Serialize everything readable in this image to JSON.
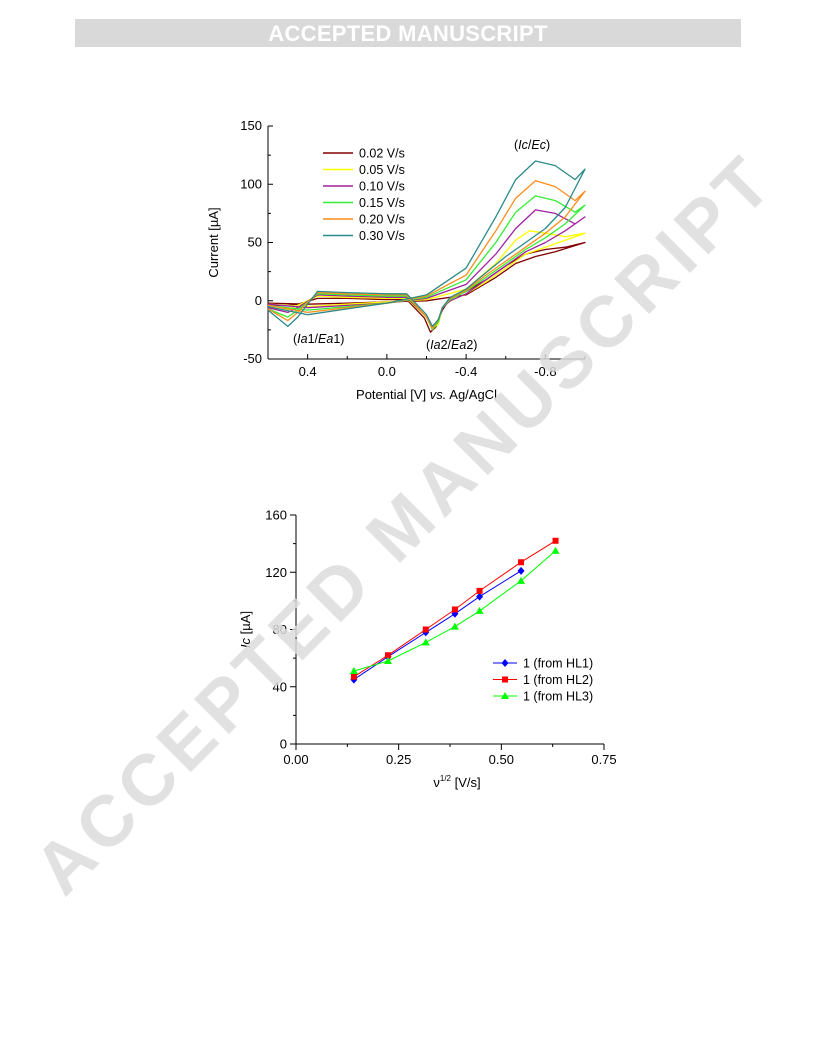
{
  "banner": "ACCEPTED MANUSCRIPT",
  "watermark": "ACCEPTED MANUSCRIPT",
  "chart_data": [
    {
      "type": "line",
      "xlabel": "Potential [V] vs. Ag/AgCl",
      "xlabel_parts": [
        "Potential [V] ",
        "vs.",
        " Ag/AgCl"
      ],
      "ylabel": "Current [µA]",
      "xlim": [
        0.6,
        -1.0
      ],
      "ylim": [
        -50,
        150
      ],
      "xticks": [
        0.4,
        0.0,
        -0.4,
        -0.8
      ],
      "xtick_labels": [
        "0.4",
        "0.0",
        "-0.4",
        "-0.8"
      ],
      "yticks": [
        -50,
        0,
        50,
        100,
        150
      ],
      "ytick_labels": [
        "-50",
        "0",
        "50",
        "100",
        "150"
      ],
      "x_reversed": true,
      "annotations": [
        {
          "text": "(Ic/Ec)",
          "parts": [
            "(",
            "Ic",
            "/",
            "Ec",
            ")"
          ]
        },
        {
          "text": "(Ia1/Ea1)",
          "parts": [
            "(",
            "Ia",
            "1/",
            "Ea",
            "1)"
          ]
        },
        {
          "text": "(Ia2/Ea2)",
          "parts": [
            "(",
            "Ia",
            "2/",
            "Ea",
            "2)"
          ]
        }
      ],
      "legend_position": "top-left",
      "series": [
        {
          "name": "0.02 V/s",
          "color": "#800000",
          "forward": [
            [
              0.6,
              -2
            ],
            [
              0.4,
              -3
            ],
            [
              0.2,
              -2
            ],
            [
              0.0,
              -1
            ],
            [
              -0.2,
              0
            ],
            [
              -0.4,
              5
            ],
            [
              -0.55,
              20
            ],
            [
              -0.65,
              32
            ],
            [
              -0.75,
              38
            ],
            [
              -0.85,
              42
            ],
            [
              -1.0,
              50
            ]
          ],
          "reverse": [
            [
              -1.0,
              50
            ],
            [
              -0.9,
              46
            ],
            [
              -0.8,
              44
            ],
            [
              -0.7,
              40
            ],
            [
              -0.6,
              30
            ],
            [
              -0.5,
              18
            ],
            [
              -0.4,
              8
            ],
            [
              -0.32,
              2
            ],
            [
              -0.28,
              -8
            ],
            [
              -0.25,
              -22
            ],
            [
              -0.22,
              -27
            ],
            [
              -0.19,
              -15
            ],
            [
              -0.1,
              1
            ],
            [
              0.0,
              1
            ],
            [
              0.2,
              2
            ],
            [
              0.35,
              2
            ],
            [
              0.45,
              -3
            ],
            [
              0.5,
              -4
            ],
            [
              0.6,
              -4
            ]
          ]
        },
        {
          "name": "0.05 V/s",
          "color": "#ffff00",
          "forward": [
            [
              0.6,
              -3
            ],
            [
              0.4,
              -5
            ],
            [
              0.2,
              -3
            ],
            [
              0.0,
              -1
            ],
            [
              -0.2,
              1
            ],
            [
              -0.4,
              10
            ],
            [
              -0.55,
              32
            ],
            [
              -0.65,
              52
            ],
            [
              -0.72,
              60
            ],
            [
              -0.8,
              58
            ],
            [
              -0.9,
              55
            ],
            [
              -1.0,
              58
            ]
          ],
          "reverse": [
            [
              -1.0,
              58
            ],
            [
              -0.9,
              52
            ],
            [
              -0.8,
              46
            ],
            [
              -0.7,
              40
            ],
            [
              -0.6,
              28
            ],
            [
              -0.5,
              16
            ],
            [
              -0.4,
              6
            ],
            [
              -0.32,
              0
            ],
            [
              -0.28,
              -6
            ],
            [
              -0.26,
              -20
            ],
            [
              -0.23,
              -24
            ],
            [
              -0.2,
              -14
            ],
            [
              -0.1,
              2
            ],
            [
              0.0,
              2
            ],
            [
              0.2,
              3
            ],
            [
              0.35,
              4
            ],
            [
              0.45,
              -4
            ],
            [
              0.5,
              -8
            ],
            [
              0.6,
              -6
            ]
          ]
        },
        {
          "name": "0.10 V/s",
          "color": "#a020a0",
          "forward": [
            [
              0.6,
              -3
            ],
            [
              0.4,
              -6
            ],
            [
              0.2,
              -4
            ],
            [
              0.0,
              -2
            ],
            [
              -0.2,
              2
            ],
            [
              -0.4,
              14
            ],
            [
              -0.55,
              40
            ],
            [
              -0.65,
              62
            ],
            [
              -0.75,
              78
            ],
            [
              -0.85,
              75
            ],
            [
              -0.95,
              66
            ],
            [
              -1.0,
              72
            ]
          ],
          "reverse": [
            [
              -1.0,
              72
            ],
            [
              -0.9,
              60
            ],
            [
              -0.8,
              50
            ],
            [
              -0.7,
              42
            ],
            [
              -0.6,
              30
            ],
            [
              -0.5,
              18
            ],
            [
              -0.4,
              6
            ],
            [
              -0.32,
              0
            ],
            [
              -0.28,
              -6
            ],
            [
              -0.26,
              -18
            ],
            [
              -0.23,
              -24
            ],
            [
              -0.2,
              -14
            ],
            [
              -0.1,
              3
            ],
            [
              0.0,
              3
            ],
            [
              0.2,
              4
            ],
            [
              0.35,
              5
            ],
            [
              0.45,
              -6
            ],
            [
              0.5,
              -10
            ],
            [
              0.6,
              -6
            ]
          ]
        },
        {
          "name": "0.15 V/s",
          "color": "#33ee33",
          "forward": [
            [
              0.6,
              -4
            ],
            [
              0.4,
              -8
            ],
            [
              0.2,
              -5
            ],
            [
              0.0,
              -2
            ],
            [
              -0.2,
              3
            ],
            [
              -0.4,
              18
            ],
            [
              -0.55,
              50
            ],
            [
              -0.65,
              76
            ],
            [
              -0.75,
              90
            ],
            [
              -0.85,
              86
            ],
            [
              -0.95,
              76
            ],
            [
              -1.0,
              82
            ]
          ],
          "reverse": [
            [
              -1.0,
              82
            ],
            [
              -0.9,
              66
            ],
            [
              -0.8,
              54
            ],
            [
              -0.7,
              44
            ],
            [
              -0.6,
              32
            ],
            [
              -0.5,
              20
            ],
            [
              -0.4,
              8
            ],
            [
              -0.32,
              1
            ],
            [
              -0.28,
              -6
            ],
            [
              -0.26,
              -18
            ],
            [
              -0.23,
              -25
            ],
            [
              -0.2,
              -14
            ],
            [
              -0.1,
              4
            ],
            [
              0.0,
              4
            ],
            [
              0.2,
              5
            ],
            [
              0.35,
              6
            ],
            [
              0.45,
              -8
            ],
            [
              0.5,
              -14
            ],
            [
              0.6,
              -7
            ]
          ]
        },
        {
          "name": "0.20 V/s",
          "color": "#ff8c1a",
          "forward": [
            [
              0.6,
              -4
            ],
            [
              0.4,
              -10
            ],
            [
              0.2,
              -6
            ],
            [
              0.0,
              -2
            ],
            [
              -0.2,
              4
            ],
            [
              -0.4,
              22
            ],
            [
              -0.55,
              60
            ],
            [
              -0.65,
              88
            ],
            [
              -0.75,
              103
            ],
            [
              -0.85,
              98
            ],
            [
              -0.95,
              86
            ],
            [
              -1.0,
              94
            ]
          ],
          "reverse": [
            [
              -1.0,
              94
            ],
            [
              -0.9,
              72
            ],
            [
              -0.8,
              58
            ],
            [
              -0.7,
              46
            ],
            [
              -0.6,
              34
            ],
            [
              -0.5,
              22
            ],
            [
              -0.4,
              9
            ],
            [
              -0.32,
              2
            ],
            [
              -0.28,
              -6
            ],
            [
              -0.26,
              -16
            ],
            [
              -0.23,
              -24
            ],
            [
              -0.2,
              -14
            ],
            [
              -0.1,
              5
            ],
            [
              0.0,
              5
            ],
            [
              0.2,
              6
            ],
            [
              0.35,
              7
            ],
            [
              0.45,
              -10
            ],
            [
              0.5,
              -17
            ],
            [
              0.6,
              -7
            ]
          ]
        },
        {
          "name": "0.30 V/s",
          "color": "#2a8a8a",
          "forward": [
            [
              0.6,
              -5
            ],
            [
              0.4,
              -12
            ],
            [
              0.2,
              -7
            ],
            [
              0.0,
              -2
            ],
            [
              -0.2,
              5
            ],
            [
              -0.4,
              28
            ],
            [
              -0.55,
              72
            ],
            [
              -0.65,
              104
            ],
            [
              -0.75,
              120
            ],
            [
              -0.85,
              116
            ],
            [
              -0.95,
              104
            ],
            [
              -1.0,
              113
            ]
          ],
          "reverse": [
            [
              -1.0,
              113
            ],
            [
              -0.9,
              80
            ],
            [
              -0.8,
              62
            ],
            [
              -0.7,
              50
            ],
            [
              -0.6,
              38
            ],
            [
              -0.5,
              24
            ],
            [
              -0.4,
              10
            ],
            [
              -0.32,
              3
            ],
            [
              -0.28,
              -6
            ],
            [
              -0.26,
              -16
            ],
            [
              -0.23,
              -22
            ],
            [
              -0.2,
              -12
            ],
            [
              -0.1,
              6
            ],
            [
              0.0,
              6
            ],
            [
              0.2,
              7
            ],
            [
              0.35,
              8
            ],
            [
              0.45,
              -14
            ],
            [
              0.5,
              -22
            ],
            [
              0.6,
              -8
            ]
          ]
        }
      ]
    },
    {
      "type": "line",
      "xlabel": "ν",
      "xlabel_sup": "1/2",
      "xlabel_unit": " [V/s]",
      "ylabel": "Ic [µA]",
      "ylabel_parts": [
        "Ic",
        " [µA]"
      ],
      "xlim": [
        0,
        0.75
      ],
      "ylim": [
        0,
        160
      ],
      "xticks": [
        0.0,
        0.25,
        0.5,
        0.75
      ],
      "xtick_labels": [
        "0.00",
        "0.25",
        "0.50",
        "0.75"
      ],
      "yticks": [
        0,
        40,
        80,
        120,
        160
      ],
      "ytick_labels": [
        "0",
        "40",
        "80",
        "120",
        "160"
      ],
      "legend_position": "right",
      "series": [
        {
          "name": "1 (from HL1)",
          "color": "#0000ff",
          "marker": "diamond",
          "x": [
            0.141,
            0.224,
            0.316,
            0.387,
            0.447,
            0.548
          ],
          "y": [
            45,
            61,
            78,
            91,
            103,
            121
          ]
        },
        {
          "name": "1 (from HL2)",
          "color": "#ff0000",
          "marker": "square",
          "x": [
            0.141,
            0.224,
            0.316,
            0.387,
            0.447,
            0.548,
            0.632
          ],
          "y": [
            47,
            62,
            80,
            94,
            107,
            127,
            142
          ]
        },
        {
          "name": "1 (from HL3)",
          "color": "#00ff00",
          "marker": "triangle",
          "x": [
            0.141,
            0.224,
            0.316,
            0.387,
            0.447,
            0.548,
            0.632
          ],
          "y": [
            51,
            58,
            71,
            82,
            93,
            114,
            135
          ]
        }
      ]
    }
  ]
}
